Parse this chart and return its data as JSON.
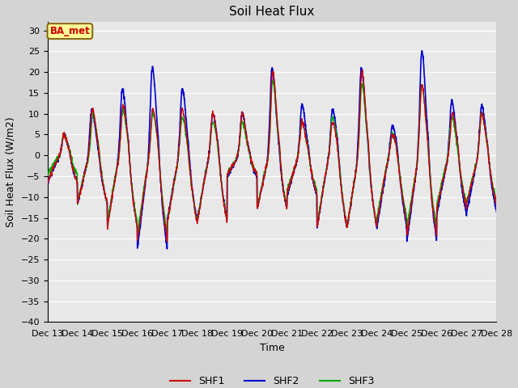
{
  "title": "Soil Heat Flux",
  "xlabel": "Time",
  "ylabel": "Soil Heat Flux (W/m2)",
  "ylim": [
    -40,
    32
  ],
  "yticks": [
    -40,
    -35,
    -30,
    -25,
    -20,
    -15,
    -10,
    -5,
    0,
    5,
    10,
    15,
    20,
    25,
    30
  ],
  "line_colors": {
    "SHF1": "#cc0000",
    "SHF2": "#0000cc",
    "SHF3": "#00aa00"
  },
  "line_widths": {
    "SHF1": 1.0,
    "SHF2": 1.2,
    "SHF3": 1.0
  },
  "fig_bg_color": "#d4d4d4",
  "plot_bg_color": "#e8e8e8",
  "annotation_text": "BA_met",
  "annotation_color": "#cc0000",
  "annotation_bg": "#ffff99",
  "annotation_border": "#8B6914",
  "grid_color": "#ffffff",
  "n_days": 15,
  "start_day": 13,
  "points_per_day": 144
}
